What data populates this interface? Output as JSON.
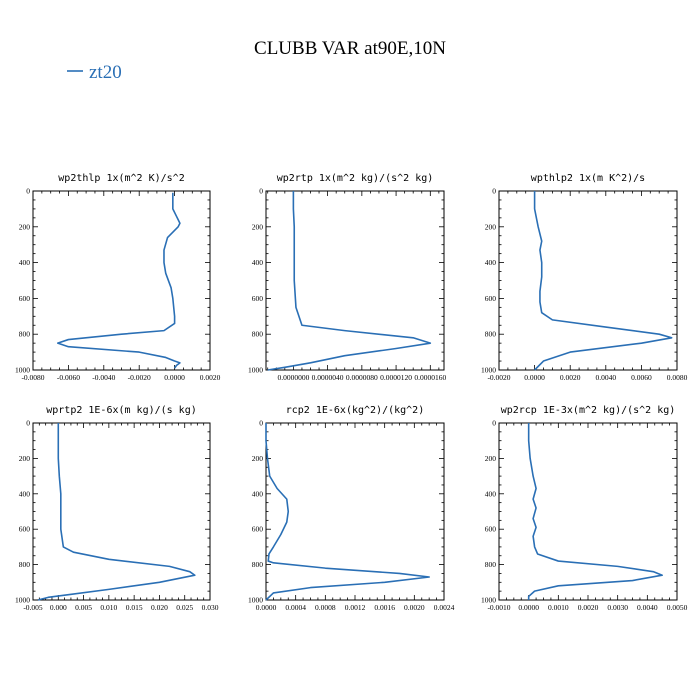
{
  "title": "CLUBB VAR at90E,10N",
  "legend": [
    {
      "label": "zt20",
      "color": "#2a6fb5"
    }
  ],
  "chart_data": [
    {
      "type": "line",
      "title": "wp2thlp  1x(m^2 K)/s^2",
      "xticks": [
        "-0.0080",
        "-0.0060",
        "-0.0040",
        "-0.0020",
        "0.0000",
        "0.0020"
      ],
      "xlim": [
        -0.008,
        0.002
      ],
      "yticks": [
        "0",
        "200",
        "400",
        "600",
        "800",
        "1000"
      ],
      "ylim": [
        0,
        1000
      ],
      "series": [
        {
          "x": [
            -0.0001,
            -0.0001,
            0.0001,
            0.0002,
            0.0003,
            0.0002,
            -0.0004,
            -0.0006,
            -0.0006,
            -0.0005,
            -0.0002,
            -0.0001,
            0.0,
            0.0,
            -0.0006,
            -0.003,
            -0.006,
            -0.0066,
            -0.006,
            -0.002,
            -0.0005,
            0.0,
            0.0003,
            0.0001,
            0.0
          ],
          "y": [
            10,
            100,
            140,
            160,
            180,
            200,
            260,
            330,
            400,
            460,
            540,
            600,
            700,
            740,
            780,
            800,
            830,
            850,
            870,
            900,
            930,
            950,
            960,
            975,
            990
          ]
        }
      ]
    },
    {
      "type": "line",
      "title": "wp2rtp  1x(m^2 kg)/(s^2 kg)",
      "xticks": [
        "0.0000000",
        "0.0000040",
        "0.0000080",
        "0.0000120",
        "0.0000160"
      ],
      "xlim": [
        -3.2e-06,
        1.76e-05
      ],
      "yticks": [
        "0",
        "200",
        "400",
        "600",
        "800",
        "1000"
      ],
      "ylim": [
        0,
        1000
      ],
      "series": [
        {
          "x": [
            0.0,
            0.0,
            1e-07,
            1e-07,
            1e-07,
            1e-07,
            3e-07,
            1e-06,
            6e-06,
            1.4e-05,
            1.6e-05,
            1.2e-05,
            6e-06,
            2e-06,
            -1e-06,
            -3e-06
          ],
          "y": [
            0,
            100,
            200,
            300,
            400,
            500,
            650,
            750,
            780,
            820,
            850,
            880,
            920,
            960,
            985,
            1000
          ]
        }
      ]
    },
    {
      "type": "line",
      "title": "wpthlp2  1x(m K^2)/s",
      "xticks": [
        "-0.0020",
        "0.0000",
        "0.0020",
        "0.0040",
        "0.0060",
        "0.0080"
      ],
      "xlim": [
        -0.002,
        0.008
      ],
      "yticks": [
        "0",
        "200",
        "400",
        "600",
        "800",
        "1000"
      ],
      "ylim": [
        0,
        1000
      ],
      "series": [
        {
          "x": [
            0.0,
            0.0,
            0.0001,
            0.0002,
            0.0004,
            0.0003,
            0.0004,
            0.0004,
            0.0003,
            0.0003,
            0.0004,
            0.001,
            0.004,
            0.007,
            0.0077,
            0.006,
            0.002,
            0.0005,
            0.0
          ],
          "y": [
            0,
            100,
            150,
            200,
            280,
            330,
            400,
            480,
            560,
            620,
            680,
            720,
            760,
            800,
            820,
            850,
            900,
            950,
            1000
          ]
        }
      ]
    },
    {
      "type": "line",
      "title": "wprtp2  1E-6x(m kg)/(s kg)",
      "xticks": [
        "-0.005",
        "0.000",
        "0.005",
        "0.010",
        "0.015",
        "0.020",
        "0.025",
        "0.030"
      ],
      "xlim": [
        -0.005,
        0.03
      ],
      "yticks": [
        "0",
        "200",
        "400",
        "600",
        "800",
        "1000"
      ],
      "ylim": [
        0,
        1000
      ],
      "series": [
        {
          "x": [
            0.0,
            0.0,
            0.0,
            0.0002,
            0.0005,
            0.0005,
            0.0005,
            0.001,
            0.003,
            0.01,
            0.022,
            0.026,
            0.027,
            0.02,
            0.01,
            0.002,
            -0.002,
            -0.004
          ],
          "y": [
            0,
            100,
            200,
            300,
            400,
            500,
            600,
            700,
            730,
            770,
            810,
            840,
            860,
            900,
            940,
            970,
            985,
            1000
          ]
        }
      ]
    },
    {
      "type": "line",
      "title": "rcp2  1E-6x(kg^2)/(kg^2)",
      "xticks": [
        "0.0000",
        "0.0004",
        "0.0008",
        "0.0012",
        "0.0016",
        "0.0020",
        "0.0024"
      ],
      "xlim": [
        0,
        0.0024
      ],
      "yticks": [
        "0",
        "200",
        "400",
        "600",
        "800",
        "1000"
      ],
      "ylim": [
        0,
        1000
      ],
      "series": [
        {
          "x": [
            0.0,
            0.0,
            2e-05,
            5e-05,
            0.00015,
            0.00028,
            0.0003,
            0.00028,
            0.0002,
            0.0001,
            4e-05,
            3e-05,
            0.0001,
            0.0008,
            0.0018,
            0.0022,
            0.0016,
            0.0006,
            0.0001,
            0.0
          ],
          "y": [
            0,
            100,
            200,
            300,
            370,
            430,
            500,
            560,
            630,
            700,
            740,
            780,
            790,
            820,
            850,
            870,
            900,
            930,
            960,
            1000
          ]
        }
      ]
    },
    {
      "type": "line",
      "title": "wp2rcp  1E-3x(m^2 kg)/(s^2 kg)",
      "xticks": [
        "-0.0010",
        "0.0000",
        "0.0010",
        "0.0020",
        "0.0030",
        "0.0040",
        "0.0050"
      ],
      "xlim": [
        -0.001,
        0.005
      ],
      "yticks": [
        "0",
        "200",
        "400",
        "600",
        "800",
        "1000"
      ],
      "ylim": [
        0,
        1000
      ],
      "series": [
        {
          "x": [
            0.0,
            0.0,
            5e-05,
            0.00015,
            0.00025,
            0.00015,
            0.00025,
            0.00015,
            0.00025,
            0.00015,
            0.0002,
            0.0003,
            0.001,
            0.003,
            0.0042,
            0.0045,
            0.0035,
            0.001,
            0.0002,
            0.0,
            0.0
          ],
          "y": [
            0,
            100,
            200,
            300,
            370,
            430,
            480,
            540,
            590,
            640,
            700,
            740,
            780,
            810,
            840,
            860,
            890,
            920,
            950,
            980,
            1000
          ]
        }
      ]
    }
  ]
}
